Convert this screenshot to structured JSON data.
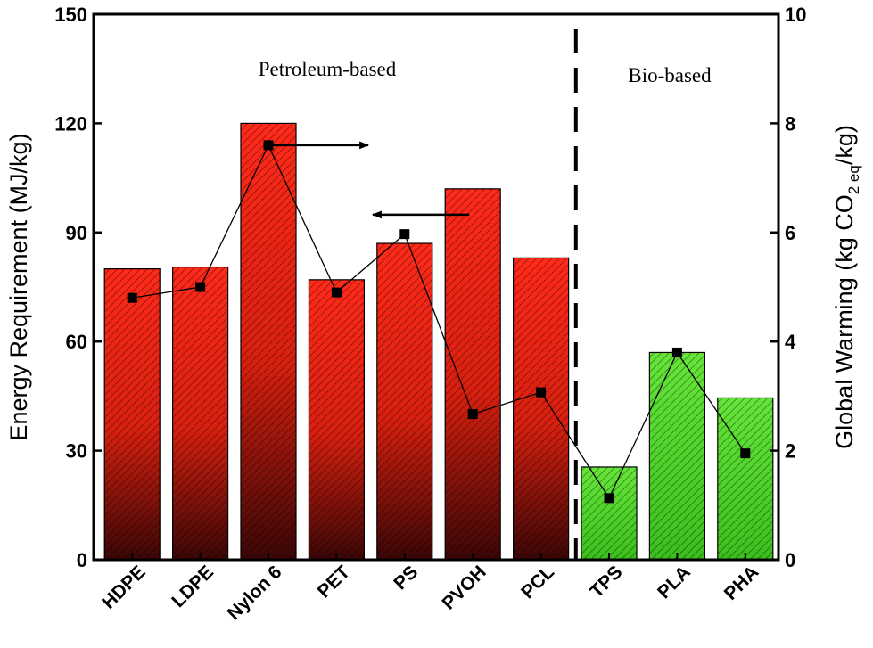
{
  "chart_data": {
    "type": "bar",
    "categories": [
      "HDPE",
      "LDPE",
      "Nylon 6",
      "PET",
      "PS",
      "PVOH",
      "PCL",
      "TPS",
      "PLA",
      "PHA"
    ],
    "series": [
      {
        "axis": "left",
        "values": [
          80,
          80.5,
          120,
          77,
          87,
          102,
          83,
          25.5,
          57,
          44.5
        ],
        "colors": [
          "#ff2a1a",
          "#ff2a1a",
          "#ff2a1a",
          "#ff2a1a",
          "#ff2a1a",
          "#ff2a1a",
          "#ff2a1a",
          "#66e63a",
          "#66e63a",
          "#66e63a"
        ]
      },
      {
        "axis": "right",
        "type": "line",
        "values": [
          4.8,
          5.0,
          7.6,
          4.9,
          5.97,
          2.67,
          3.07,
          1.13,
          3.8,
          1.95
        ]
      }
    ],
    "ylabel": "Energy Requirement (MJ/kg)",
    "ylabel_right": {
      "prefix": "Global Warming (kg CO",
      "sub": "2 eq",
      "suffix": "/kg)"
    },
    "ylim": [
      0,
      150
    ],
    "yticks": [
      "0",
      "30",
      "60",
      "90",
      "120",
      "150"
    ],
    "ylim_right": [
      0,
      10
    ],
    "yticks_right": [
      "0",
      "2",
      "4",
      "6",
      "8",
      "10"
    ],
    "annotations": [
      "Petroleum-based",
      "Bio-based"
    ],
    "divider_after_category": "PCL",
    "arrows": [
      {
        "from_category": "Nylon 6",
        "value": 7.6,
        "points": "right"
      },
      {
        "from_category": "PVOH",
        "value": 102,
        "points": "left"
      }
    ],
    "grid": false,
    "legend": "none"
  }
}
